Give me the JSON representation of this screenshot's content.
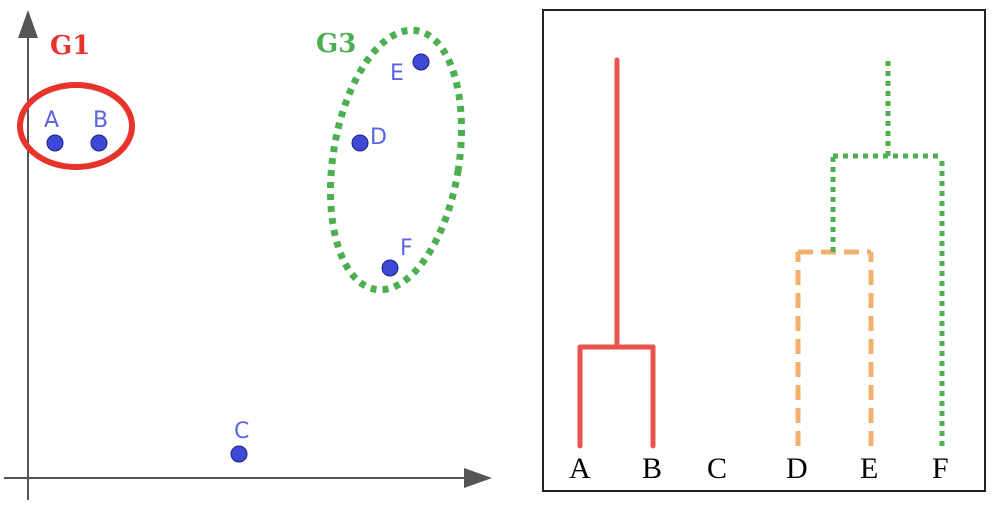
{
  "scatter": {
    "points": [
      {
        "id": "A",
        "label": "A"
      },
      {
        "id": "B",
        "label": "B"
      },
      {
        "id": "C",
        "label": "C"
      },
      {
        "id": "D",
        "label": "D"
      },
      {
        "id": "E",
        "label": "E"
      },
      {
        "id": "F",
        "label": "F"
      }
    ],
    "groups": [
      {
        "label": "G1",
        "color": "#e8332a",
        "members": [
          "A",
          "B"
        ]
      },
      {
        "label": "G3",
        "color": "#4caf50",
        "members": [
          "D",
          "E",
          "F"
        ]
      }
    ],
    "point_color": "#3e48d8"
  },
  "dendrogram": {
    "leaves": [
      "A",
      "B",
      "C",
      "D",
      "E",
      "F"
    ],
    "colors": {
      "g1": "#e8544c",
      "de": "#f2b06f",
      "g3": "#4caf50"
    }
  }
}
